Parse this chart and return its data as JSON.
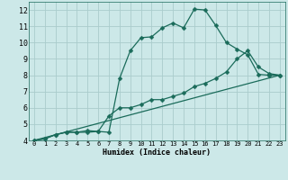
{
  "title": "",
  "xlabel": "Humidex (Indice chaleur)",
  "ylabel": "",
  "bg_color": "#cce8e8",
  "grid_color": "#aacccc",
  "line_color": "#1a6b5a",
  "xlim": [
    -0.5,
    23.5
  ],
  "ylim": [
    4,
    12.5
  ],
  "xticks": [
    0,
    1,
    2,
    3,
    4,
    5,
    6,
    7,
    8,
    9,
    10,
    11,
    12,
    13,
    14,
    15,
    16,
    17,
    18,
    19,
    20,
    21,
    22,
    23
  ],
  "yticks": [
    4,
    5,
    6,
    7,
    8,
    9,
    10,
    11,
    12
  ],
  "line1_x": [
    0,
    1,
    2,
    3,
    4,
    5,
    6,
    7,
    8,
    9,
    10,
    11,
    12,
    13,
    14,
    15,
    16,
    17,
    18,
    19,
    20,
    21,
    22,
    23
  ],
  "line1_y": [
    4.0,
    4.1,
    4.35,
    4.5,
    4.5,
    4.6,
    4.55,
    4.5,
    7.8,
    9.5,
    10.3,
    10.35,
    10.9,
    11.2,
    10.9,
    12.05,
    12.0,
    11.05,
    10.0,
    9.6,
    9.25,
    8.05,
    8.0,
    8.0
  ],
  "line2_x": [
    0,
    1,
    2,
    3,
    4,
    5,
    6,
    7,
    8,
    9,
    10,
    11,
    12,
    13,
    14,
    15,
    16,
    17,
    18,
    19,
    20,
    21,
    22,
    23
  ],
  "line2_y": [
    4.0,
    4.1,
    4.35,
    4.5,
    4.5,
    4.5,
    4.55,
    5.5,
    6.0,
    6.0,
    6.2,
    6.5,
    6.5,
    6.7,
    6.9,
    7.3,
    7.5,
    7.8,
    8.2,
    9.0,
    9.5,
    8.5,
    8.1,
    8.0
  ],
  "line3_x": [
    0,
    23
  ],
  "line3_y": [
    4.0,
    8.0
  ],
  "marker": "D",
  "markersize": 2.5,
  "lw": 0.9
}
